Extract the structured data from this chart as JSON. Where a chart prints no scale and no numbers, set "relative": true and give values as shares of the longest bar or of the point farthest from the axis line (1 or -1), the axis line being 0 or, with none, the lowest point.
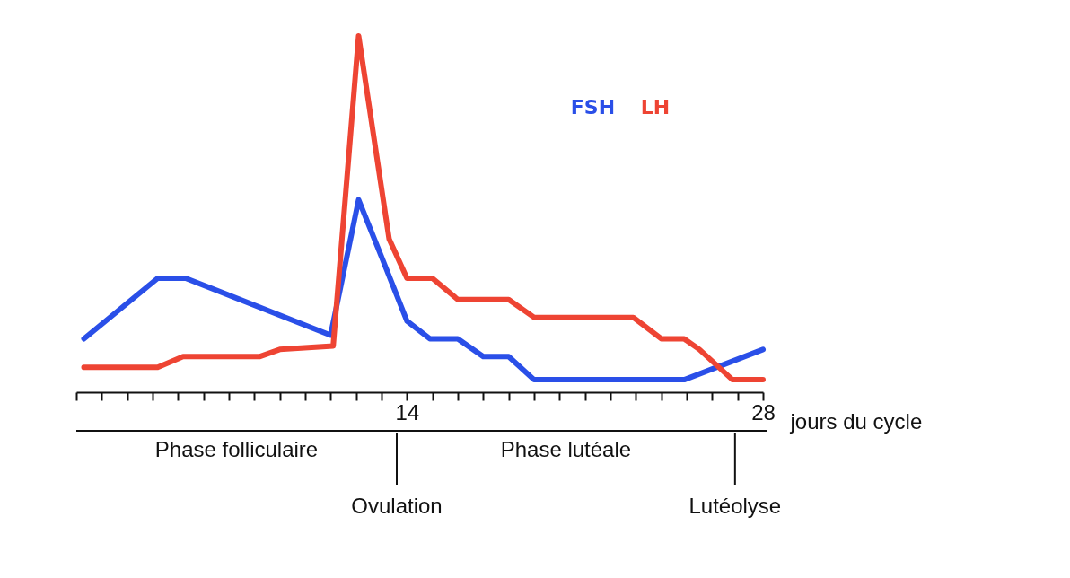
{
  "chart_data": {
    "type": "line",
    "relative": true,
    "xlabel": "jours du cycle",
    "xlim": [
      1,
      28
    ],
    "xticks": [
      {
        "value": 1,
        "label": null
      },
      {
        "value": 2,
        "label": null
      },
      {
        "value": 3,
        "label": null
      },
      {
        "value": 4,
        "label": null
      },
      {
        "value": 5,
        "label": null
      },
      {
        "value": 6,
        "label": null
      },
      {
        "value": 7,
        "label": null
      },
      {
        "value": 8,
        "label": null
      },
      {
        "value": 9,
        "label": null
      },
      {
        "value": 10,
        "label": null
      },
      {
        "value": 11,
        "label": null
      },
      {
        "value": 12,
        "label": null
      },
      {
        "value": 13,
        "label": null
      },
      14,
      {
        "value": 15,
        "label": null
      },
      {
        "value": 16,
        "label": null
      },
      {
        "value": 17,
        "label": null
      },
      {
        "value": 18,
        "label": null
      },
      {
        "value": 19,
        "label": null
      },
      {
        "value": 20,
        "label": null
      },
      {
        "value": 21,
        "label": null
      },
      {
        "value": 22,
        "label": null
      },
      {
        "value": 23,
        "label": null
      },
      {
        "value": 24,
        "label": null
      },
      {
        "value": 25,
        "label": null
      },
      {
        "value": 26,
        "label": null
      },
      {
        "value": 27,
        "label": null
      },
      28
    ],
    "series": [
      {
        "name": "FSH",
        "color": "#2a4fe8",
        "x": [
          1.3,
          4.2,
          5.3,
          11.0,
          12.1,
          13.0,
          14.0,
          14.9,
          16.0,
          17.0,
          18.0,
          19.0,
          24.9,
          28
        ],
        "values": [
          0.15,
          0.32,
          0.32,
          0.16,
          0.54,
          0.38,
          0.2,
          0.15,
          0.15,
          0.1,
          0.1,
          0.035,
          0.035,
          0.12
        ]
      },
      {
        "name": "LH",
        "color": "#ee4433",
        "x": [
          1.3,
          4.2,
          5.2,
          8.2,
          9.0,
          11.1,
          12.1,
          13.3,
          14.0,
          15.0,
          16.0,
          18.0,
          19.0,
          22.9,
          24.0,
          24.9,
          25.5,
          26.8,
          28
        ],
        "values": [
          0.07,
          0.07,
          0.1,
          0.1,
          0.12,
          0.13,
          1.0,
          0.43,
          0.32,
          0.32,
          0.26,
          0.26,
          0.21,
          0.21,
          0.15,
          0.15,
          0.12,
          0.035,
          0.035
        ]
      }
    ],
    "ref_lines": [
      {
        "axis": "x",
        "value": 13.6,
        "label": "Ovulation"
      },
      {
        "axis": "x",
        "value": 26.9,
        "label": "Lutéolyse"
      }
    ],
    "annotations": [
      "Phase folliculaire",
      "Phase lutéale"
    ],
    "grid": false
  }
}
